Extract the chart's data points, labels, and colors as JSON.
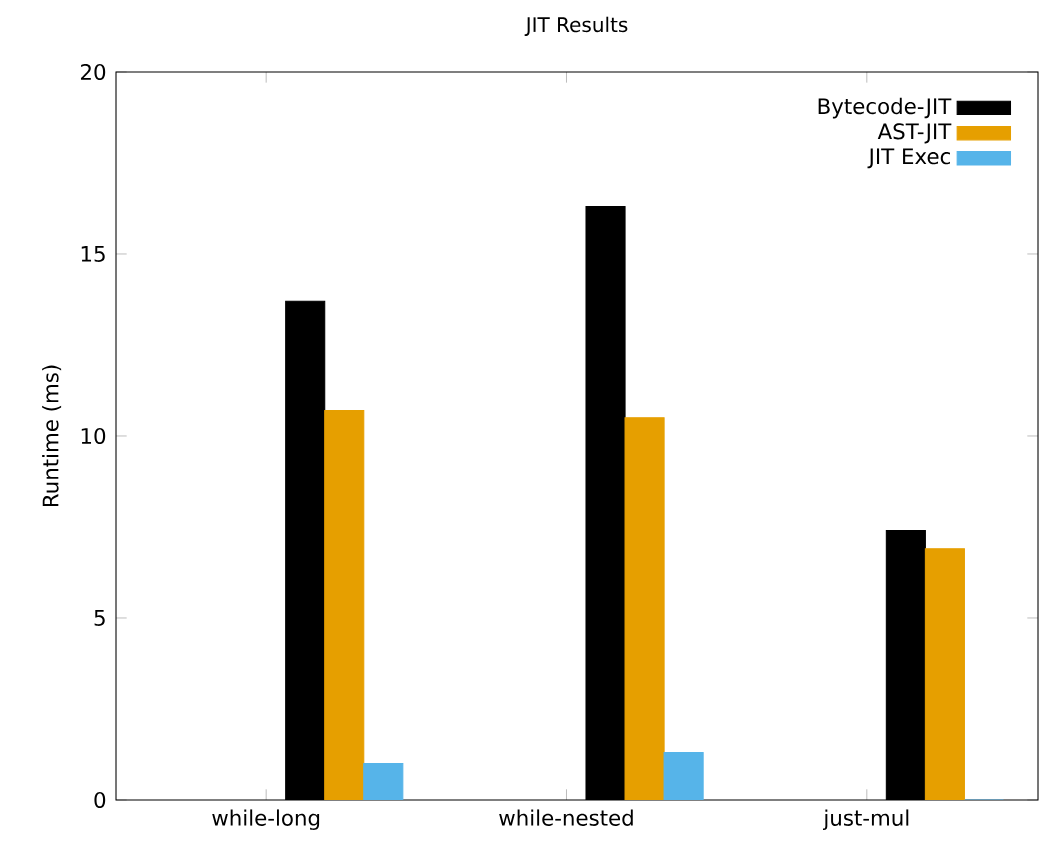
{
  "chart_data": {
    "type": "bar",
    "title": "JIT Results",
    "ylabel": "Runtime (ms)",
    "categories": [
      "while-long",
      "while-nested",
      "just-mul"
    ],
    "series": [
      {
        "name": "Bytecode-JIT",
        "color": "#000000",
        "values": [
          13.7,
          16.3,
          7.4
        ]
      },
      {
        "name": "AST-JIT",
        "color": "#e69f00",
        "values": [
          10.7,
          10.5,
          6.9
        ]
      },
      {
        "name": "JIT Exec",
        "color": "#56b4e9",
        "values": [
          1.0,
          1.3,
          0
        ]
      }
    ],
    "ylim": [
      0,
      20
    ],
    "yticks": [
      0,
      5,
      10,
      15,
      20
    ],
    "grid": false,
    "legend": "top right"
  }
}
